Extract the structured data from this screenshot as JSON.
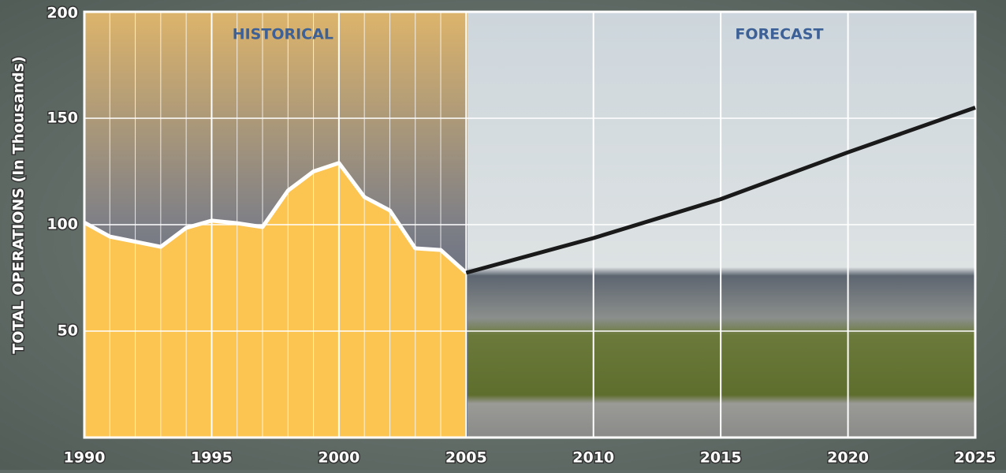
{
  "chart_data": {
    "type": "line",
    "ylabel": "TOTAL OPERATIONS (In Thousands)",
    "annotations": [
      {
        "text": "HISTORICAL",
        "x": 1997.8
      },
      {
        "text": "FORECAST",
        "x": 2017.3
      }
    ],
    "series": [
      {
        "color": "#ffffff",
        "fill": "#fcc451",
        "x": [
          1990,
          1991,
          1992,
          1993,
          1994,
          1995,
          1996,
          1997,
          1998,
          1999,
          2000,
          2001,
          2002,
          2003,
          2004,
          2005
        ],
        "values": [
          101,
          94.4,
          92,
          89.6,
          98.5,
          101.9,
          100.7,
          98.9,
          116,
          125,
          129,
          113,
          106.7,
          88.9,
          88.1,
          77.4
        ]
      },
      {
        "color": "#1a1a1a",
        "x": [
          2005,
          2010,
          2015,
          2020,
          2025
        ],
        "values": [
          77.4,
          93.7,
          112,
          134,
          155
        ]
      }
    ],
    "xlim": [
      1990,
      2025
    ],
    "xticks": [
      1990,
      1995,
      2000,
      2005,
      2010,
      2015,
      2020,
      2025
    ],
    "ylim": [
      0,
      200
    ],
    "yticks": [
      50,
      100,
      150,
      200
    ],
    "grid": true
  }
}
